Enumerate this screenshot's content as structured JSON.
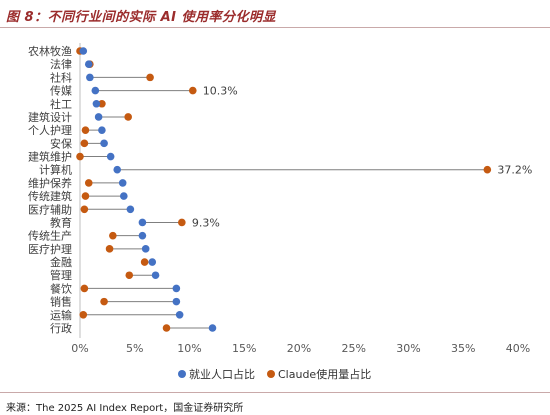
{
  "title": "图 8：不同行业间的实际 AI 使用率分化明显",
  "source": "来源：The 2025 AI Index Report，国金证券研究所",
  "colors": {
    "employment": "#4472c4",
    "claude": "#c55a11",
    "connector": "#7f7f7f",
    "title": "#9b2c2c"
  },
  "chart_data": {
    "type": "dot-plot",
    "categories": [
      "农林牧渔",
      "法律",
      "社科",
      "传媒",
      "社工",
      "建筑设计",
      "个人护理",
      "安保",
      "建筑维护",
      "计算机",
      "维护保养",
      "传统建筑",
      "医疗辅助",
      "教育",
      "传统生产",
      "医疗护理",
      "金融",
      "管理",
      "餐饮",
      "销售",
      "运输",
      "行政"
    ],
    "series": [
      {
        "name": "就业人口占比",
        "color": "#4472c4",
        "values": [
          0.3,
          0.8,
          0.9,
          1.4,
          1.5,
          1.7,
          2.0,
          2.2,
          2.8,
          3.4,
          3.9,
          4.0,
          4.6,
          5.7,
          5.7,
          6.0,
          6.6,
          6.9,
          8.8,
          8.8,
          9.1,
          12.1
        ]
      },
      {
        "name": "Claude使用量占比",
        "color": "#c55a11",
        "values": [
          0.0,
          0.9,
          6.4,
          10.3,
          2.0,
          4.4,
          0.5,
          0.4,
          0.0,
          37.2,
          0.8,
          0.5,
          0.4,
          9.3,
          3.0,
          2.7,
          5.9,
          4.5,
          0.4,
          2.2,
          0.3,
          7.9
        ]
      }
    ],
    "annotations": [
      {
        "category": "传媒",
        "label": "10.3%"
      },
      {
        "category": "计算机",
        "label": "37.2%"
      },
      {
        "category": "教育",
        "label": "9.3%"
      }
    ],
    "x_ticks": [
      "0%",
      "5%",
      "10%",
      "15%",
      "20%",
      "25%",
      "30%",
      "35%",
      "40%"
    ],
    "xlim": [
      0,
      40
    ],
    "x_unit": "%",
    "grid": false,
    "legend": "bottom"
  }
}
